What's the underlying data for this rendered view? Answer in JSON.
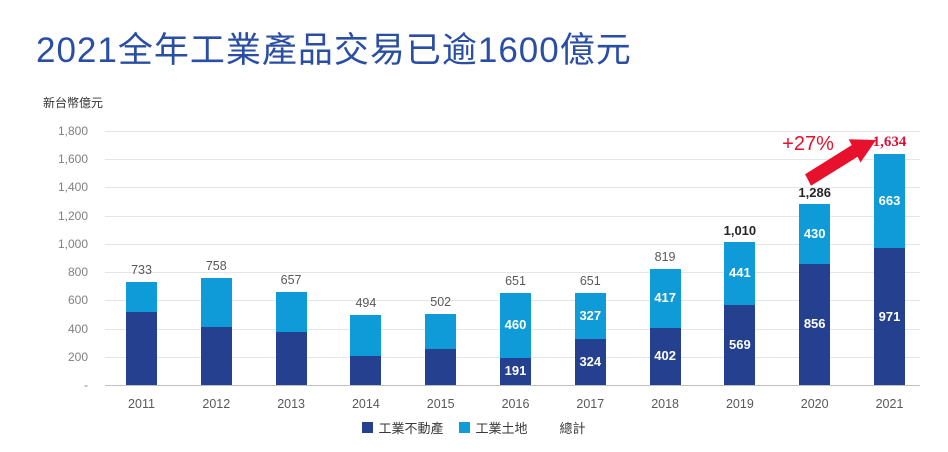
{
  "title": "2021全年工業產品交易已逾1600億元",
  "unit_label": "新台幣億元",
  "colors": {
    "title_blue": "#2B4EA5",
    "dark_blue": "#24408E",
    "light_blue": "#0F9BD7",
    "accent_red": "#E8112D",
    "total_red": "#D8103A"
  },
  "chart_data": {
    "type": "bar",
    "stacked": true,
    "title": "2021全年工業產品交易已逾1600億元",
    "ylabel": "新台幣億元",
    "xlabel": "",
    "categories": [
      "2011",
      "2012",
      "2013",
      "2014",
      "2015",
      "2016",
      "2017",
      "2018",
      "2019",
      "2020",
      "2021"
    ],
    "series": [
      {
        "name": "工業不動產",
        "color": "#24408E",
        "values": [
          515,
          414,
          378,
          205,
          253,
          191,
          324,
          402,
          569,
          856,
          971
        ]
      },
      {
        "name": "工業土地",
        "color": "#0F9BD7",
        "values": [
          218,
          344,
          279,
          289,
          249,
          460,
          327,
          417,
          441,
          430,
          663
        ]
      }
    ],
    "totals": [
      733,
      758,
      657,
      494,
      502,
      651,
      651,
      819,
      1010,
      1286,
      1634
    ],
    "totals_display": [
      "733",
      "758",
      "657",
      "494",
      "502",
      "651",
      "651",
      "819",
      "1,010",
      "1,286",
      "1,634"
    ],
    "total_label_styles": [
      "gray",
      "gray",
      "gray",
      "gray",
      "gray",
      "gray",
      "gray",
      "gray",
      "dark",
      "dark",
      "red"
    ],
    "segment_labels_shown": [
      false,
      false,
      false,
      false,
      false,
      true,
      true,
      true,
      true,
      true,
      true
    ],
    "ylim": [
      0,
      1800
    ],
    "ytick_step": 200,
    "yticks_display": [
      "-",
      "200",
      "400",
      "600",
      "800",
      "1,000",
      "1,200",
      "1,400",
      "1,600",
      "1,800"
    ],
    "grid": true,
    "legend": {
      "position": "bottom",
      "items": [
        {
          "label": "工業不動產",
          "color": "#24408E"
        },
        {
          "label": "工業土地",
          "color": "#0F9BD7"
        },
        {
          "label": "總計",
          "color": "none"
        }
      ]
    },
    "annotation": {
      "growth_label": "+27%",
      "color": "#E8112D",
      "arrow": true,
      "target_total": "1,634"
    }
  }
}
